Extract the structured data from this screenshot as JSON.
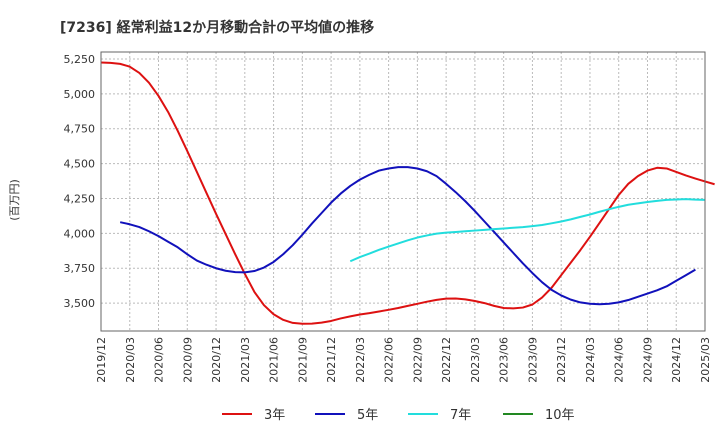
{
  "chart_data": {
    "type": "line",
    "title": "[7236]  経常利益12か月移動合計の平均値の推移",
    "ylabel": "(百万円)",
    "xlabel": "",
    "ylim": [
      3300,
      5300
    ],
    "yticks": [
      "3,500",
      "3,750",
      "4,000",
      "4,250",
      "4,500",
      "4,750",
      "5,000",
      "5,250"
    ],
    "ytick_values": [
      3500,
      3750,
      4000,
      4250,
      4500,
      4750,
      5000,
      5250
    ],
    "xticks": [
      "2019/12",
      "2020/03",
      "2020/06",
      "2020/09",
      "2020/12",
      "2021/03",
      "2021/06",
      "2021/09",
      "2021/12",
      "2022/03",
      "2022/06",
      "2022/09",
      "2022/12",
      "2023/03",
      "2023/06",
      "2023/09",
      "2023/12",
      "2024/03",
      "2024/06",
      "2024/09",
      "2024/12",
      "2025/03"
    ],
    "grid": true,
    "legend_position": "bottom",
    "series": [
      {
        "name": "3年",
        "color": "#dd1111",
        "start": "2019/12",
        "values": [
          5225,
          5222,
          5215,
          5195,
          5150,
          5080,
          4985,
          4870,
          4735,
          4590,
          4440,
          4290,
          4140,
          3995,
          3850,
          3710,
          3580,
          3485,
          3420,
          3380,
          3358,
          3352,
          3353,
          3360,
          3372,
          3390,
          3405,
          3418,
          3428,
          3440,
          3452,
          3465,
          3480,
          3495,
          3510,
          3523,
          3532,
          3533,
          3527,
          3515,
          3500,
          3480,
          3465,
          3462,
          3468,
          3490,
          3540,
          3610,
          3700,
          3790,
          3880,
          3975,
          4075,
          4175,
          4275,
          4355,
          4410,
          4450,
          4470,
          4465,
          4440,
          4415,
          4393,
          4372,
          4352
        ]
      },
      {
        "name": "5年",
        "color": "#1111bb",
        "start": "2020/02",
        "values": [
          4080,
          4065,
          4045,
          4015,
          3980,
          3940,
          3900,
          3850,
          3805,
          3775,
          3750,
          3732,
          3722,
          3720,
          3730,
          3755,
          3795,
          3850,
          3915,
          3990,
          4070,
          4145,
          4220,
          4285,
          4340,
          4385,
          4420,
          4450,
          4465,
          4475,
          4475,
          4465,
          4445,
          4410,
          4355,
          4295,
          4230,
          4160,
          4085,
          4010,
          3935,
          3860,
          3785,
          3715,
          3650,
          3595,
          3555,
          3525,
          3505,
          3495,
          3492,
          3495,
          3505,
          3522,
          3545,
          3568,
          3592,
          3620,
          3660,
          3700,
          3740
        ]
      },
      {
        "name": "7年",
        "color": "#22dddd",
        "start": "2022/02",
        "values": [
          3800,
          3830,
          3855,
          3882,
          3905,
          3928,
          3950,
          3970,
          3985,
          3998,
          4005,
          4010,
          4015,
          4020,
          4025,
          4030,
          4035,
          4040,
          4045,
          4052,
          4060,
          4072,
          4085,
          4100,
          4118,
          4135,
          4155,
          4173,
          4190,
          4205,
          4215,
          4225,
          4233,
          4240,
          4243,
          4245,
          4242,
          4240
        ]
      },
      {
        "name": "10年",
        "color": "#228822",
        "start": "",
        "values": []
      }
    ]
  }
}
